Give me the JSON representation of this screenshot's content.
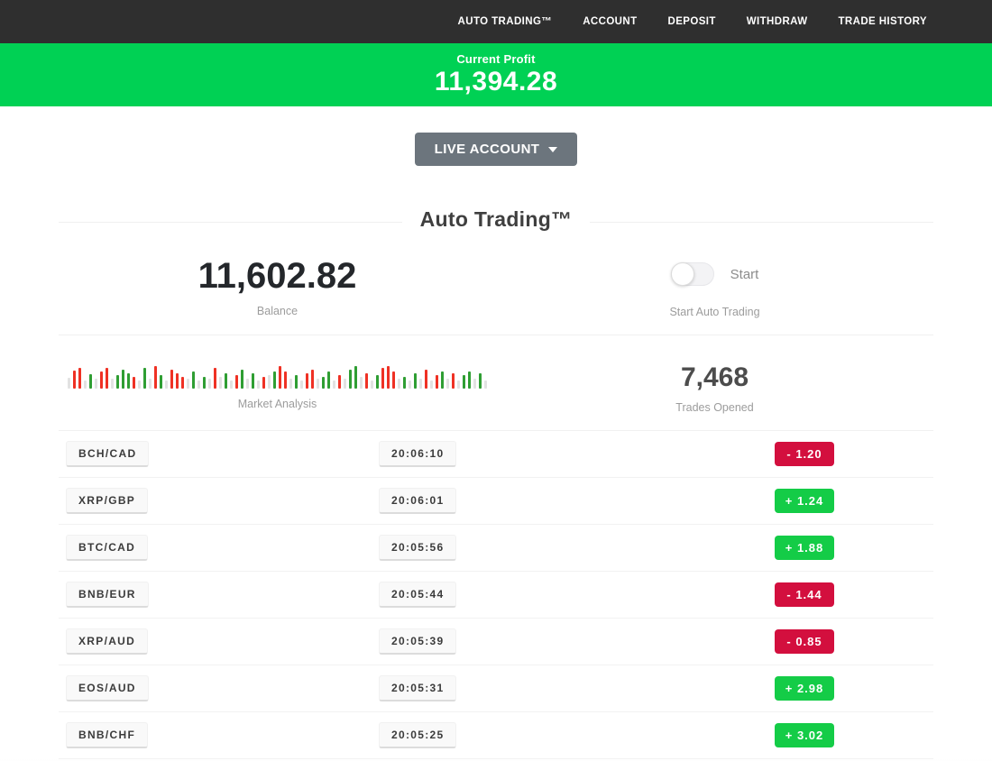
{
  "nav": {
    "items": [
      {
        "label": "AUTO TRADING™"
      },
      {
        "label": "ACCOUNT"
      },
      {
        "label": "DEPOSIT"
      },
      {
        "label": "WITHDRAW"
      },
      {
        "label": "TRADE HISTORY"
      }
    ]
  },
  "banner": {
    "label": "Current Profit",
    "value": "11,394.28"
  },
  "account_selector": {
    "label": "LIVE ACCOUNT"
  },
  "section": {
    "title": "Auto Trading™"
  },
  "stats": {
    "balance": {
      "value": "11,602.82",
      "label": "Balance"
    },
    "auto_trading": {
      "toggle_label": "Start",
      "caption": "Start Auto Trading",
      "toggle_state": "off"
    },
    "market": {
      "label": "Market Analysis"
    },
    "trades_opened": {
      "value": "7,468",
      "label": "Trades Opened"
    }
  },
  "chart_data": {
    "type": "bar",
    "title": "Market Analysis",
    "note": "decorative mini bar strip; entries are colorCode+heightPx, colors: n=neutral, r=red, g=green",
    "bars": [
      "n12",
      "r20",
      "r23",
      "n9",
      "g16",
      "n11",
      "r19",
      "r23",
      "n11",
      "g15",
      "g21",
      "g17",
      "r13",
      "n9",
      "g23",
      "n11",
      "r25",
      "g15",
      "n9",
      "r21",
      "r17",
      "r13",
      "n11",
      "g19",
      "n9",
      "g13",
      "n11",
      "r23",
      "n13",
      "g17",
      "n9",
      "r15",
      "g21",
      "n11",
      "g17",
      "n9",
      "r13",
      "n15",
      "g19",
      "r25",
      "r19",
      "n11",
      "g15",
      "n9",
      "r17",
      "r21",
      "n11",
      "g13",
      "g19",
      "n9",
      "r15",
      "n11",
      "g21",
      "g25",
      "n13",
      "r17",
      "n9",
      "g15",
      "r23",
      "r25",
      "r19",
      "n11",
      "g13",
      "n9",
      "g17",
      "n11",
      "r21",
      "n9",
      "r15",
      "g19",
      "n11",
      "r17",
      "n9",
      "g15",
      "g19",
      "n11",
      "g17",
      "n9"
    ]
  },
  "trades": {
    "rows": [
      {
        "pair": "BCH/CAD",
        "time": "20:06:10",
        "profit": "-  1.20",
        "direction": "loss"
      },
      {
        "pair": "XRP/GBP",
        "time": "20:06:01",
        "profit": "+  1.24",
        "direction": "gain"
      },
      {
        "pair": "BTC/CAD",
        "time": "20:05:56",
        "profit": "+  1.88",
        "direction": "gain"
      },
      {
        "pair": "BNB/EUR",
        "time": "20:05:44",
        "profit": "-  1.44",
        "direction": "loss"
      },
      {
        "pair": "XRP/AUD",
        "time": "20:05:39",
        "profit": "-  0.85",
        "direction": "loss"
      },
      {
        "pair": "EOS/AUD",
        "time": "20:05:31",
        "profit": "+  2.98",
        "direction": "gain"
      },
      {
        "pair": "BNB/CHF",
        "time": "20:05:25",
        "profit": "+  3.02",
        "direction": "gain"
      }
    ]
  },
  "colors": {
    "nav_dark": "#2f2f2f",
    "banner_green": "#00d154",
    "badge_green": "#14cc47",
    "badge_red": "#d30f3e",
    "button_gray": "#6c757d",
    "bar_red": "#ef3124",
    "bar_green": "#2f9e33",
    "bar_neutral": "#e2e2e2"
  }
}
